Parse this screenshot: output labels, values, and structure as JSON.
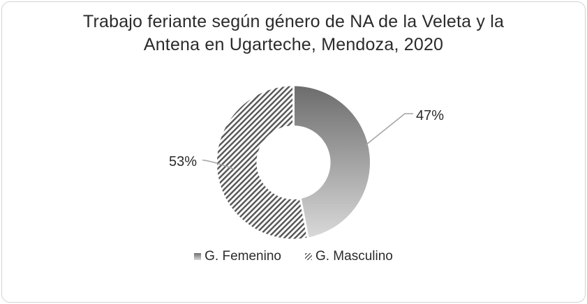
{
  "chart_title": {
    "text": "Trabajo feriante según género de NA de la Veleta y la Antena en Ugarteche, Mendoza, 2020",
    "lines": [
      "Trabajo feriante según género de NA de la Veleta y la",
      "Antena en Ugarteche, Mendoza, 2020"
    ]
  },
  "chart_data": {
    "type": "pie",
    "subtype": "donut",
    "title": "Trabajo feriante según género de NA de la Veleta y la Antena en Ugarteche, Mendoza, 2020",
    "categories": [
      "G. Femenino",
      "G. Masculino"
    ],
    "values": [
      47,
      53
    ],
    "points": [
      {
        "name": "G. Femenino",
        "value": 47,
        "label": "47%",
        "fill_style": "vertical-gradient-gray"
      },
      {
        "name": "G. Masculino",
        "value": 53,
        "label": "53%",
        "fill_style": "upward-diagonal-hatch"
      }
    ],
    "start_angle_deg": 0,
    "direction": "clockwise",
    "donut_hole_ratio": 0.46,
    "legend_position": "bottom",
    "grid": false,
    "colors": {
      "gradient_top": "#6b6b6b",
      "gradient_bottom": "#dcdcdc",
      "hatch_line": "#595959",
      "hatch_bg": "#ffffff",
      "slice_separator": "#ffffff",
      "leader_line": "#a3a3a3",
      "text": "#2b2b2b",
      "border": "#d4d4d4",
      "background": "#ffffff"
    }
  }
}
